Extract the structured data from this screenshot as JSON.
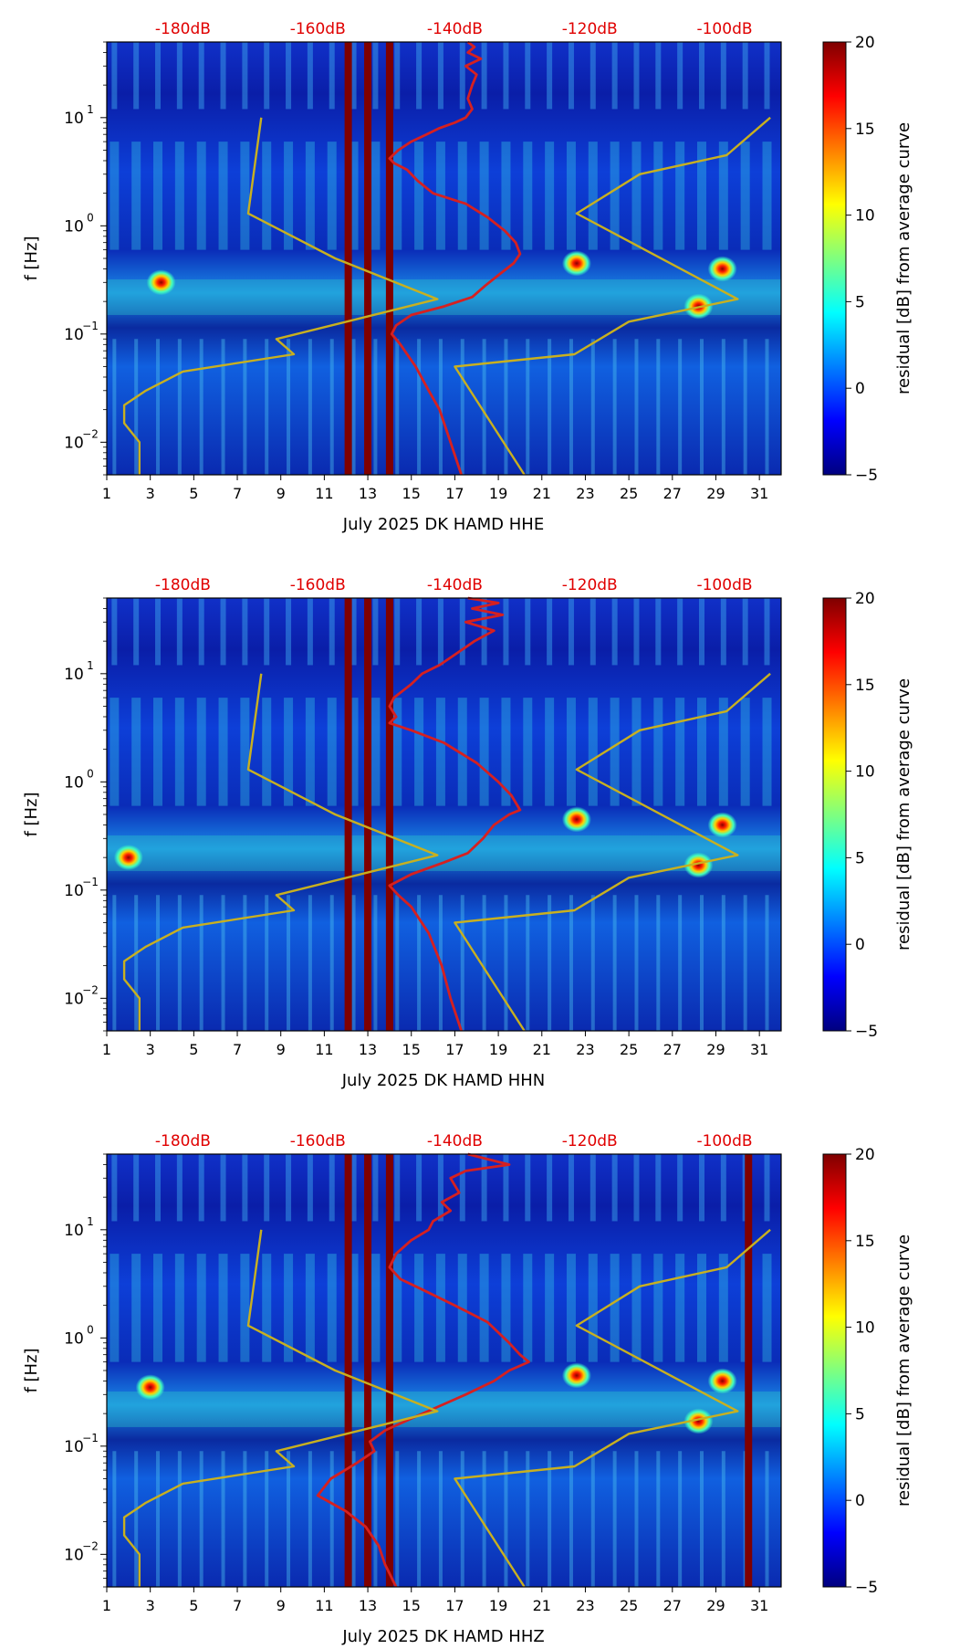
{
  "colors": {
    "noise_curve": "#d62020",
    "model_curve": "#c8b020",
    "db_label": "#e00000",
    "colormap": [
      "#00007f",
      "#0000ff",
      "#007fff",
      "#00ffff",
      "#7fff7f",
      "#ffff00",
      "#ff7f00",
      "#ff0000",
      "#7f0000"
    ]
  },
  "chart_data": [
    {
      "type": "heatmap",
      "title": "",
      "xlabel": "July 2025 DK HAMD  HHE",
      "ylabel": "f [Hz]",
      "x_ticks": [
        "1",
        "3",
        "5",
        "7",
        "9",
        "11",
        "13",
        "15",
        "17",
        "19",
        "21",
        "23",
        "25",
        "27",
        "29",
        "31"
      ],
      "xlim": [
        1,
        32
      ],
      "y_ticks": [
        {
          "label": "10",
          "exp": "−2"
        },
        {
          "label": "10",
          "exp": "−1"
        },
        {
          "label": "10",
          "exp": "0"
        },
        {
          "label": "10",
          "exp": "1"
        }
      ],
      "yscale": "log",
      "ylim": [
        0.005,
        50
      ],
      "top_axis_labels": [
        "-180dB",
        "-160dB",
        "-140dB",
        "-120dB",
        "-100dB"
      ],
      "top_axis_x": [
        4.5,
        10.7,
        17.0,
        23.2,
        29.4
      ],
      "colorbar": {
        "label": "residual [dB] from average curve",
        "ticks": [
          "−5",
          "0",
          "5",
          "10",
          "15",
          "20"
        ],
        "range": [
          -5,
          20
        ]
      },
      "saturated_days": [
        12.1,
        13.0,
        14.0
      ],
      "bright_spots": [
        {
          "x": 22.6,
          "y": 0.45
        },
        {
          "x": 29.3,
          "y": 0.4
        },
        {
          "x": 28.2,
          "y": 0.18
        },
        {
          "x": 3.5,
          "y": 0.3
        }
      ],
      "series": [
        {
          "values": [
            [
              17.6,
              50
            ],
            [
              17.9,
              45
            ],
            [
              17.6,
              40
            ],
            [
              18.2,
              35
            ],
            [
              17.5,
              30
            ],
            [
              18.0,
              25
            ],
            [
              17.8,
              20
            ],
            [
              17.6,
              15
            ],
            [
              17.8,
              12
            ],
            [
              17.5,
              10
            ],
            [
              17.0,
              9
            ],
            [
              16.3,
              8
            ],
            [
              15.7,
              7
            ],
            [
              15.0,
              6
            ],
            [
              14.4,
              5
            ],
            [
              14.0,
              4.2
            ],
            [
              14.2,
              3.8
            ],
            [
              14.8,
              3.3
            ],
            [
              15.3,
              2.6
            ],
            [
              16.0,
              2.0
            ],
            [
              17.5,
              1.6
            ],
            [
              18.5,
              1.2
            ],
            [
              19.3,
              0.9
            ],
            [
              19.8,
              0.7
            ],
            [
              20.0,
              0.55
            ],
            [
              19.7,
              0.45
            ],
            [
              19.0,
              0.35
            ],
            [
              18.4,
              0.28
            ],
            [
              17.8,
              0.22
            ],
            [
              16.5,
              0.18
            ],
            [
              15.0,
              0.15
            ],
            [
              14.3,
              0.12
            ],
            [
              14.1,
              0.1
            ],
            [
              14.5,
              0.08
            ],
            [
              15.2,
              0.05
            ],
            [
              15.8,
              0.03
            ],
            [
              16.3,
              0.02
            ],
            [
              16.8,
              0.01
            ],
            [
              17.3,
              0.005
            ]
          ]
        },
        {
          "values": [
            [
              8.1,
              10
            ],
            [
              7.5,
              1.3
            ],
            [
              11.5,
              0.5
            ],
            [
              16.2,
              0.21
            ],
            [
              8.8,
              0.09
            ],
            [
              9.6,
              0.065
            ],
            [
              4.5,
              0.045
            ],
            [
              2.8,
              0.03
            ],
            [
              1.8,
              0.022
            ],
            [
              1.8,
              0.015
            ],
            [
              2.5,
              0.01
            ],
            [
              2.5,
              0.005
            ]
          ]
        },
        {
          "values": [
            [
              31.5,
              10
            ],
            [
              29.5,
              4.5
            ],
            [
              25.5,
              3.0
            ],
            [
              22.6,
              1.3
            ],
            [
              30.0,
              0.21
            ],
            [
              25.0,
              0.13
            ],
            [
              22.5,
              0.065
            ],
            [
              17.0,
              0.05
            ],
            [
              20.2,
              0.005
            ]
          ]
        }
      ]
    },
    {
      "type": "heatmap",
      "title": "",
      "xlabel": "July 2025 DK HAMD  HHN",
      "ylabel": "f [Hz]",
      "x_ticks": [
        "1",
        "3",
        "5",
        "7",
        "9",
        "11",
        "13",
        "15",
        "17",
        "19",
        "21",
        "23",
        "25",
        "27",
        "29",
        "31"
      ],
      "xlim": [
        1,
        32
      ],
      "y_ticks": [
        {
          "label": "10",
          "exp": "−2"
        },
        {
          "label": "10",
          "exp": "−1"
        },
        {
          "label": "10",
          "exp": "0"
        },
        {
          "label": "10",
          "exp": "1"
        }
      ],
      "yscale": "log",
      "ylim": [
        0.005,
        50
      ],
      "top_axis_labels": [
        "-180dB",
        "-160dB",
        "-140dB",
        "-120dB",
        "-100dB"
      ],
      "top_axis_x": [
        4.5,
        10.7,
        17.0,
        23.2,
        29.4
      ],
      "colorbar": {
        "label": "residual [dB] from average curve",
        "ticks": [
          "−5",
          "0",
          "5",
          "10",
          "15",
          "20"
        ],
        "range": [
          -5,
          20
        ]
      },
      "saturated_days": [
        12.1,
        13.0,
        14.0
      ],
      "bright_spots": [
        {
          "x": 22.6,
          "y": 0.45
        },
        {
          "x": 29.3,
          "y": 0.4
        },
        {
          "x": 28.2,
          "y": 0.17
        },
        {
          "x": 2.0,
          "y": 0.2
        }
      ],
      "series": [
        {
          "values": [
            [
              17.6,
              50
            ],
            [
              19.0,
              45
            ],
            [
              17.8,
              40
            ],
            [
              19.2,
              35
            ],
            [
              17.5,
              30
            ],
            [
              18.8,
              25
            ],
            [
              17.9,
              20
            ],
            [
              17.0,
              15
            ],
            [
              16.3,
              12
            ],
            [
              15.5,
              10
            ],
            [
              15.0,
              8
            ],
            [
              14.2,
              6
            ],
            [
              14.0,
              5
            ],
            [
              14.3,
              4.0
            ],
            [
              14.0,
              3.5
            ],
            [
              15.0,
              3.0
            ],
            [
              16.5,
              2.3
            ],
            [
              18.0,
              1.5
            ],
            [
              19.0,
              1.0
            ],
            [
              19.6,
              0.75
            ],
            [
              20.0,
              0.55
            ],
            [
              19.5,
              0.5
            ],
            [
              18.8,
              0.4
            ],
            [
              18.3,
              0.3
            ],
            [
              17.6,
              0.22
            ],
            [
              16.5,
              0.18
            ],
            [
              15.0,
              0.14
            ],
            [
              14.0,
              0.11
            ],
            [
              14.4,
              0.09
            ],
            [
              15.0,
              0.07
            ],
            [
              15.8,
              0.04
            ],
            [
              16.4,
              0.02
            ],
            [
              16.8,
              0.01
            ],
            [
              17.3,
              0.005
            ]
          ]
        },
        {
          "values": [
            [
              8.1,
              10
            ],
            [
              7.5,
              1.3
            ],
            [
              11.5,
              0.5
            ],
            [
              16.2,
              0.21
            ],
            [
              8.8,
              0.09
            ],
            [
              9.6,
              0.065
            ],
            [
              4.5,
              0.045
            ],
            [
              2.8,
              0.03
            ],
            [
              1.8,
              0.022
            ],
            [
              1.8,
              0.015
            ],
            [
              2.5,
              0.01
            ],
            [
              2.5,
              0.005
            ]
          ]
        },
        {
          "values": [
            [
              31.5,
              10
            ],
            [
              29.5,
              4.5
            ],
            [
              25.5,
              3.0
            ],
            [
              22.6,
              1.3
            ],
            [
              30.0,
              0.21
            ],
            [
              25.0,
              0.13
            ],
            [
              22.5,
              0.065
            ],
            [
              17.0,
              0.05
            ],
            [
              20.2,
              0.005
            ]
          ]
        }
      ]
    },
    {
      "type": "heatmap",
      "title": "",
      "xlabel": "July 2025 DK HAMD  HHZ",
      "ylabel": "f [Hz]",
      "x_ticks": [
        "1",
        "3",
        "5",
        "7",
        "9",
        "11",
        "13",
        "15",
        "17",
        "19",
        "21",
        "23",
        "25",
        "27",
        "29",
        "31"
      ],
      "xlim": [
        1,
        32
      ],
      "y_ticks": [
        {
          "label": "10",
          "exp": "−2"
        },
        {
          "label": "10",
          "exp": "−1"
        },
        {
          "label": "10",
          "exp": "0"
        },
        {
          "label": "10",
          "exp": "1"
        }
      ],
      "yscale": "log",
      "ylim": [
        0.005,
        50
      ],
      "top_axis_labels": [
        "-180dB",
        "-160dB",
        "-140dB",
        "-120dB",
        "-100dB"
      ],
      "top_axis_x": [
        4.5,
        10.7,
        17.0,
        23.2,
        29.4
      ],
      "colorbar": {
        "label": "residual [dB] from average curve",
        "ticks": [
          "−5",
          "0",
          "5",
          "10",
          "15",
          "20"
        ],
        "range": [
          -5,
          20
        ]
      },
      "saturated_days": [
        12.1,
        13.0,
        14.0,
        30.5
      ],
      "bright_spots": [
        {
          "x": 22.6,
          "y": 0.45
        },
        {
          "x": 29.3,
          "y": 0.4
        },
        {
          "x": 28.2,
          "y": 0.17
        },
        {
          "x": 3.0,
          "y": 0.35
        }
      ],
      "series": [
        {
          "values": [
            [
              17.6,
              50
            ],
            [
              19.5,
              40
            ],
            [
              17.5,
              35
            ],
            [
              16.8,
              30
            ],
            [
              17.2,
              22
            ],
            [
              16.4,
              18
            ],
            [
              16.8,
              15
            ],
            [
              16.0,
              12
            ],
            [
              15.8,
              10
            ],
            [
              15.0,
              8
            ],
            [
              14.3,
              6
            ],
            [
              14.0,
              4.5
            ],
            [
              14.5,
              3.5
            ],
            [
              15.5,
              2.8
            ],
            [
              17.0,
              2.0
            ],
            [
              18.5,
              1.4
            ],
            [
              19.5,
              0.9
            ],
            [
              20.0,
              0.7
            ],
            [
              20.4,
              0.6
            ],
            [
              19.5,
              0.5
            ],
            [
              18.8,
              0.4
            ],
            [
              17.5,
              0.3
            ],
            [
              16.2,
              0.23
            ],
            [
              15.0,
              0.18
            ],
            [
              13.8,
              0.14
            ],
            [
              13.1,
              0.11
            ],
            [
              13.3,
              0.09
            ],
            [
              12.5,
              0.07
            ],
            [
              11.3,
              0.05
            ],
            [
              10.7,
              0.035
            ],
            [
              12.0,
              0.025
            ],
            [
              12.9,
              0.018
            ],
            [
              13.5,
              0.012
            ],
            [
              13.8,
              0.008
            ],
            [
              14.3,
              0.005
            ]
          ]
        },
        {
          "values": [
            [
              8.1,
              10
            ],
            [
              7.5,
              1.3
            ],
            [
              11.5,
              0.5
            ],
            [
              16.2,
              0.21
            ],
            [
              8.8,
              0.09
            ],
            [
              9.6,
              0.065
            ],
            [
              4.5,
              0.045
            ],
            [
              2.8,
              0.03
            ],
            [
              1.8,
              0.022
            ],
            [
              1.8,
              0.015
            ],
            [
              2.5,
              0.01
            ],
            [
              2.5,
              0.005
            ]
          ]
        },
        {
          "values": [
            [
              31.5,
              10
            ],
            [
              29.5,
              4.5
            ],
            [
              25.5,
              3.0
            ],
            [
              22.6,
              1.3
            ],
            [
              30.0,
              0.21
            ],
            [
              25.0,
              0.13
            ],
            [
              22.5,
              0.065
            ],
            [
              17.0,
              0.05
            ],
            [
              20.2,
              0.005
            ]
          ]
        }
      ]
    }
  ]
}
